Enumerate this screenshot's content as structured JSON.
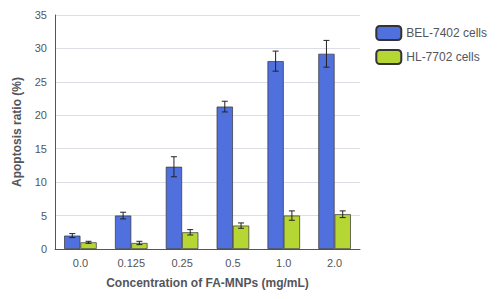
{
  "chart_data": {
    "type": "bar",
    "categories": [
      "0.0",
      "0.125",
      "0.25",
      "0.5",
      "1.0",
      "2.0"
    ],
    "series": [
      {
        "name": "BEL-7402 cells",
        "values": [
          2.0,
          5.0,
          12.3,
          21.3,
          28.1,
          29.2
        ],
        "errors": [
          0.3,
          0.5,
          1.5,
          0.8,
          1.5,
          2.0
        ]
      },
      {
        "name": "HL-7702 cells",
        "values": [
          1.0,
          0.9,
          2.5,
          3.5,
          5.0,
          5.2
        ],
        "errors": [
          0.15,
          0.25,
          0.4,
          0.4,
          0.7,
          0.5
        ]
      }
    ],
    "xlabel": "Concentration of FA-MNPs (mg/mL)",
    "ylabel": "Apoptosis ratio (%)",
    "ylim": [
      0,
      35
    ],
    "yticks": [
      0,
      5,
      10,
      15,
      20,
      25,
      30,
      35
    ],
    "grid": true,
    "legend": "right"
  }
}
